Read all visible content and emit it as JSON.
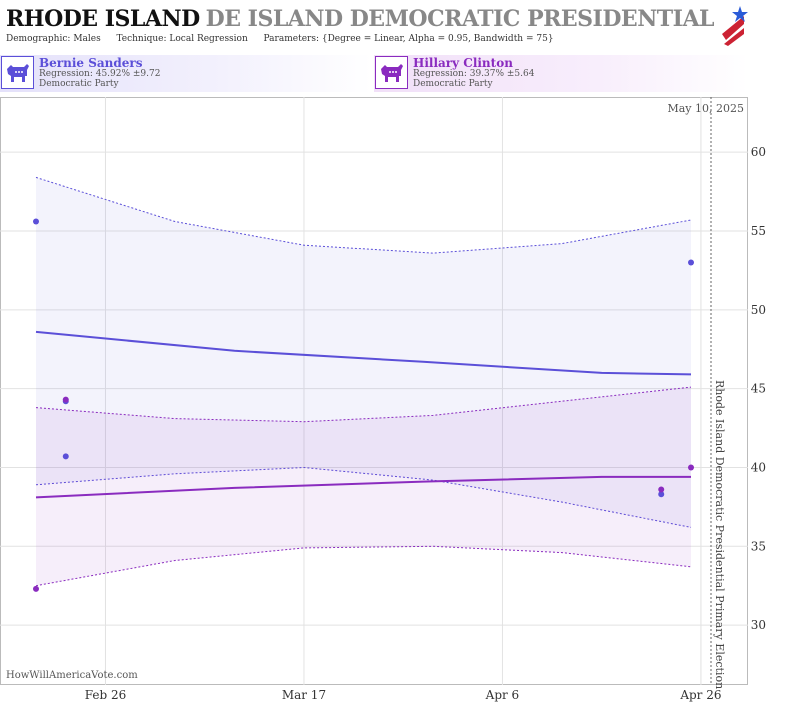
{
  "header": {
    "title": "RHODE ISLAND",
    "title_ghost": "DE ISLAND DEMOCRATIC PRESIDENTIAL PRIMA",
    "demographic_label": "Demographic:",
    "demographic": "Males",
    "technique_label": "Technique:",
    "technique": "Local Regression",
    "parameters_label": "Parameters:",
    "parameters": "{Degree = Linear, Alpha = 0.95, Bandwidth = 75}"
  },
  "candidates": [
    {
      "name": "Bernie Sanders",
      "regression": "Regression: 45.92% ±9.72",
      "party": "Democratic Party",
      "color": "#5b4fd8",
      "icon": "donkey-icon"
    },
    {
      "name": "Hillary Clinton",
      "regression": "Regression: 39.37% ±5.64",
      "party": "Democratic Party",
      "color": "#8a2bbf",
      "icon": "donkey-icon"
    }
  ],
  "chart_data": {
    "type": "scatter",
    "date_label": "May 10, 2025",
    "vertical_label": "Rhode Island Democratic Presidential Primary Election",
    "watermark": "HowWillAmericaVote.com",
    "x_ticks": [
      "Feb 26",
      "Mar 17",
      "Apr 6",
      "Apr 26"
    ],
    "y_ticks": [
      30,
      35,
      40,
      45,
      50,
      55,
      60
    ],
    "ylim": [
      26.2,
      63.5
    ],
    "grid": true,
    "series": [
      {
        "name": "Bernie Sanders",
        "color": "#5b4fd8",
        "points": [
          {
            "x": "Feb 19",
            "y": 55.6
          },
          {
            "x": "Feb 22",
            "y": 44.2
          },
          {
            "x": "Feb 22",
            "y": 40.7
          },
          {
            "x": "Apr 22",
            "y": 38.3
          },
          {
            "x": "Apr 25",
            "y": 53.0
          }
        ],
        "trend": [
          {
            "x": "Feb 19",
            "y": 48.6
          },
          {
            "x": "Mar 10",
            "y": 47.4
          },
          {
            "x": "Mar 29",
            "y": 46.7
          },
          {
            "x": "Apr 16",
            "y": 46.0
          },
          {
            "x": "Apr 25",
            "y": 45.9
          }
        ],
        "upper": [
          {
            "x": "Feb 19",
            "y": 58.4
          },
          {
            "x": "Mar 4",
            "y": 55.6
          },
          {
            "x": "Mar 17",
            "y": 54.1
          },
          {
            "x": "Mar 30",
            "y": 53.6
          },
          {
            "x": "Apr 12",
            "y": 54.2
          },
          {
            "x": "Apr 25",
            "y": 55.7
          }
        ],
        "lower": [
          {
            "x": "Feb 19",
            "y": 38.9
          },
          {
            "x": "Mar 4",
            "y": 39.6
          },
          {
            "x": "Mar 17",
            "y": 40.0
          },
          {
            "x": "Mar 30",
            "y": 39.2
          },
          {
            "x": "Apr 12",
            "y": 37.8
          },
          {
            "x": "Apr 25",
            "y": 36.2
          }
        ]
      },
      {
        "name": "Hillary Clinton",
        "color": "#8a2bbf",
        "points": [
          {
            "x": "Feb 19",
            "y": 32.3
          },
          {
            "x": "Feb 22",
            "y": 44.3
          },
          {
            "x": "Apr 22",
            "y": 38.6
          },
          {
            "x": "Apr 25",
            "y": 40.0
          }
        ],
        "trend": [
          {
            "x": "Feb 19",
            "y": 38.1
          },
          {
            "x": "Mar 10",
            "y": 38.7
          },
          {
            "x": "Mar 29",
            "y": 39.1
          },
          {
            "x": "Apr 16",
            "y": 39.4
          },
          {
            "x": "Apr 25",
            "y": 39.4
          }
        ],
        "upper": [
          {
            "x": "Feb 19",
            "y": 43.8
          },
          {
            "x": "Mar 4",
            "y": 43.1
          },
          {
            "x": "Mar 17",
            "y": 42.9
          },
          {
            "x": "Mar 30",
            "y": 43.3
          },
          {
            "x": "Apr 12",
            "y": 44.2
          },
          {
            "x": "Apr 25",
            "y": 45.1
          }
        ],
        "lower": [
          {
            "x": "Feb 19",
            "y": 32.5
          },
          {
            "x": "Mar 4",
            "y": 34.1
          },
          {
            "x": "Mar 17",
            "y": 34.9
          },
          {
            "x": "Mar 30",
            "y": 35.0
          },
          {
            "x": "Apr 12",
            "y": 34.6
          },
          {
            "x": "Apr 25",
            "y": 33.7
          }
        ]
      }
    ]
  }
}
